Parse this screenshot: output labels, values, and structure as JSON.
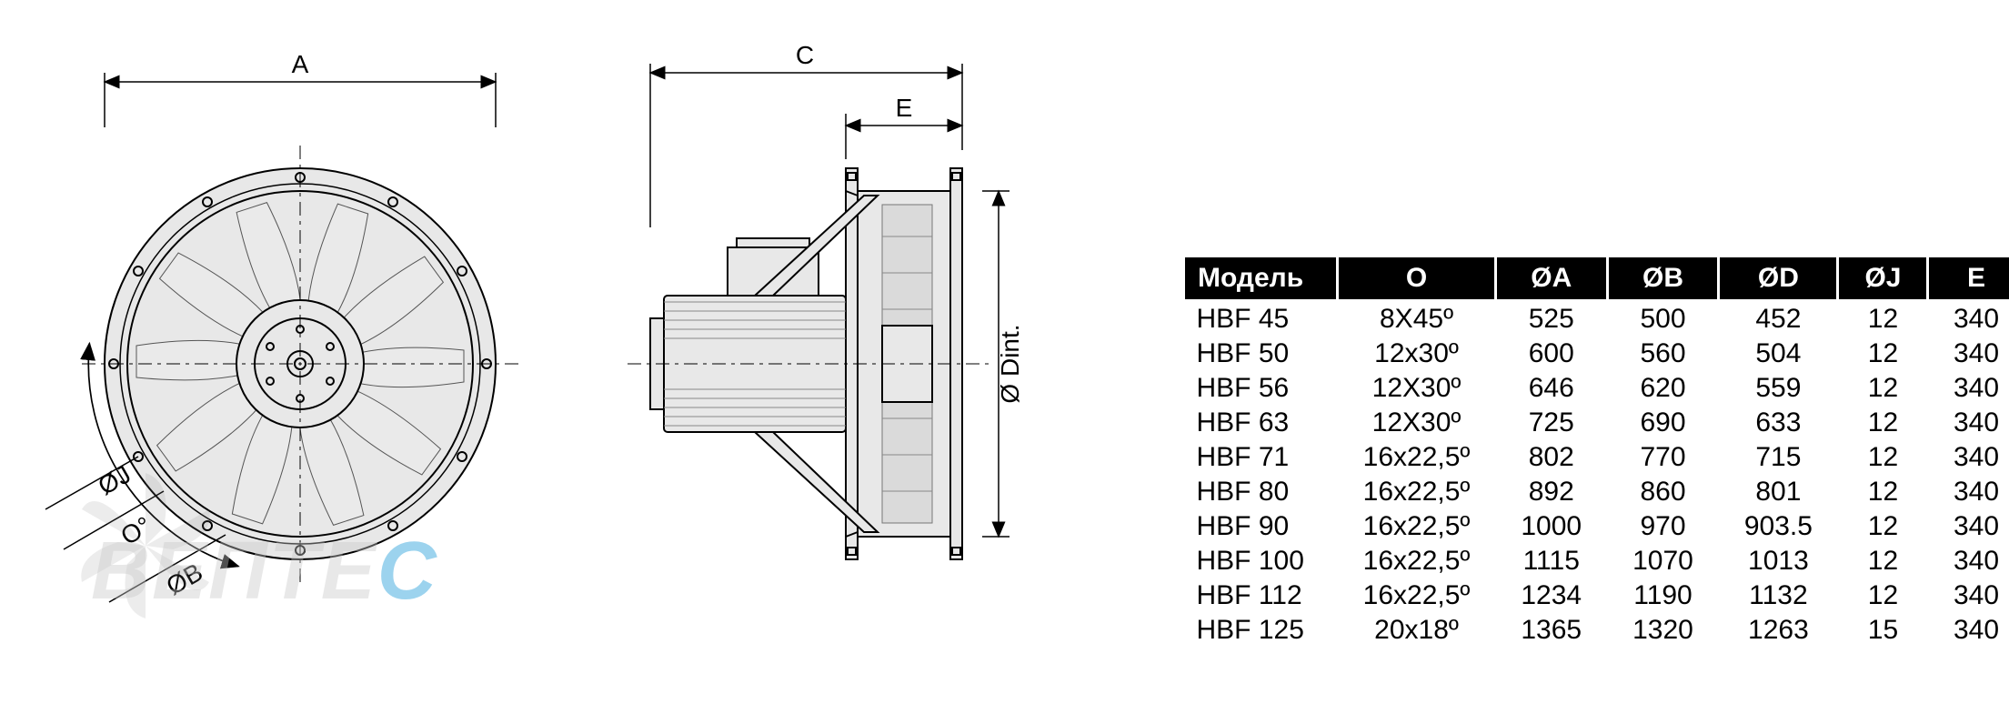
{
  "diagram": {
    "labels": {
      "A": "A",
      "C": "C",
      "E": "E",
      "Dint": "Ø Dint.",
      "OJ": "ØJ",
      "O": "O°",
      "OB": "ØB"
    },
    "watermark": "ВЕПТЕ",
    "watermark_suffix": "С"
  },
  "table": {
    "headers": [
      "Модель",
      "O",
      "ØA",
      "ØB",
      "ØD",
      "ØJ",
      "E"
    ],
    "rows": [
      [
        "HBF 45",
        "8X45º",
        "525",
        "500",
        "452",
        "12",
        "340"
      ],
      [
        "HBF 50",
        "12x30º",
        "600",
        "560",
        "504",
        "12",
        "340"
      ],
      [
        "HBF 56",
        "12X30º",
        "646",
        "620",
        "559",
        "12",
        "340"
      ],
      [
        "HBF 63",
        "12X30º",
        "725",
        "690",
        "633",
        "12",
        "340"
      ],
      [
        "HBF 71",
        "16x22,5º",
        "802",
        "770",
        "715",
        "12",
        "340"
      ],
      [
        "HBF 80",
        "16x22,5º",
        "892",
        "860",
        "801",
        "12",
        "340"
      ],
      [
        "HBF 90",
        "16x22,5º",
        "1000",
        "970",
        "903.5",
        "12",
        "340"
      ],
      [
        "HBF 100",
        "16x22,5º",
        "1115",
        "1070",
        "1013",
        "12",
        "340"
      ],
      [
        "HBF 112",
        "16x22,5º",
        "1234",
        "1190",
        "1132",
        "12",
        "340"
      ],
      [
        "HBF 125",
        "20x18º",
        "1365",
        "1320",
        "1263",
        "15",
        "340"
      ]
    ]
  },
  "styling": {
    "header_bg": "#000000",
    "header_fg": "#ffffff",
    "body_fg": "#000000",
    "table_font_size": 30,
    "watermark_color": "#c8c8c8",
    "watermark_blue": "#0a94d6"
  }
}
